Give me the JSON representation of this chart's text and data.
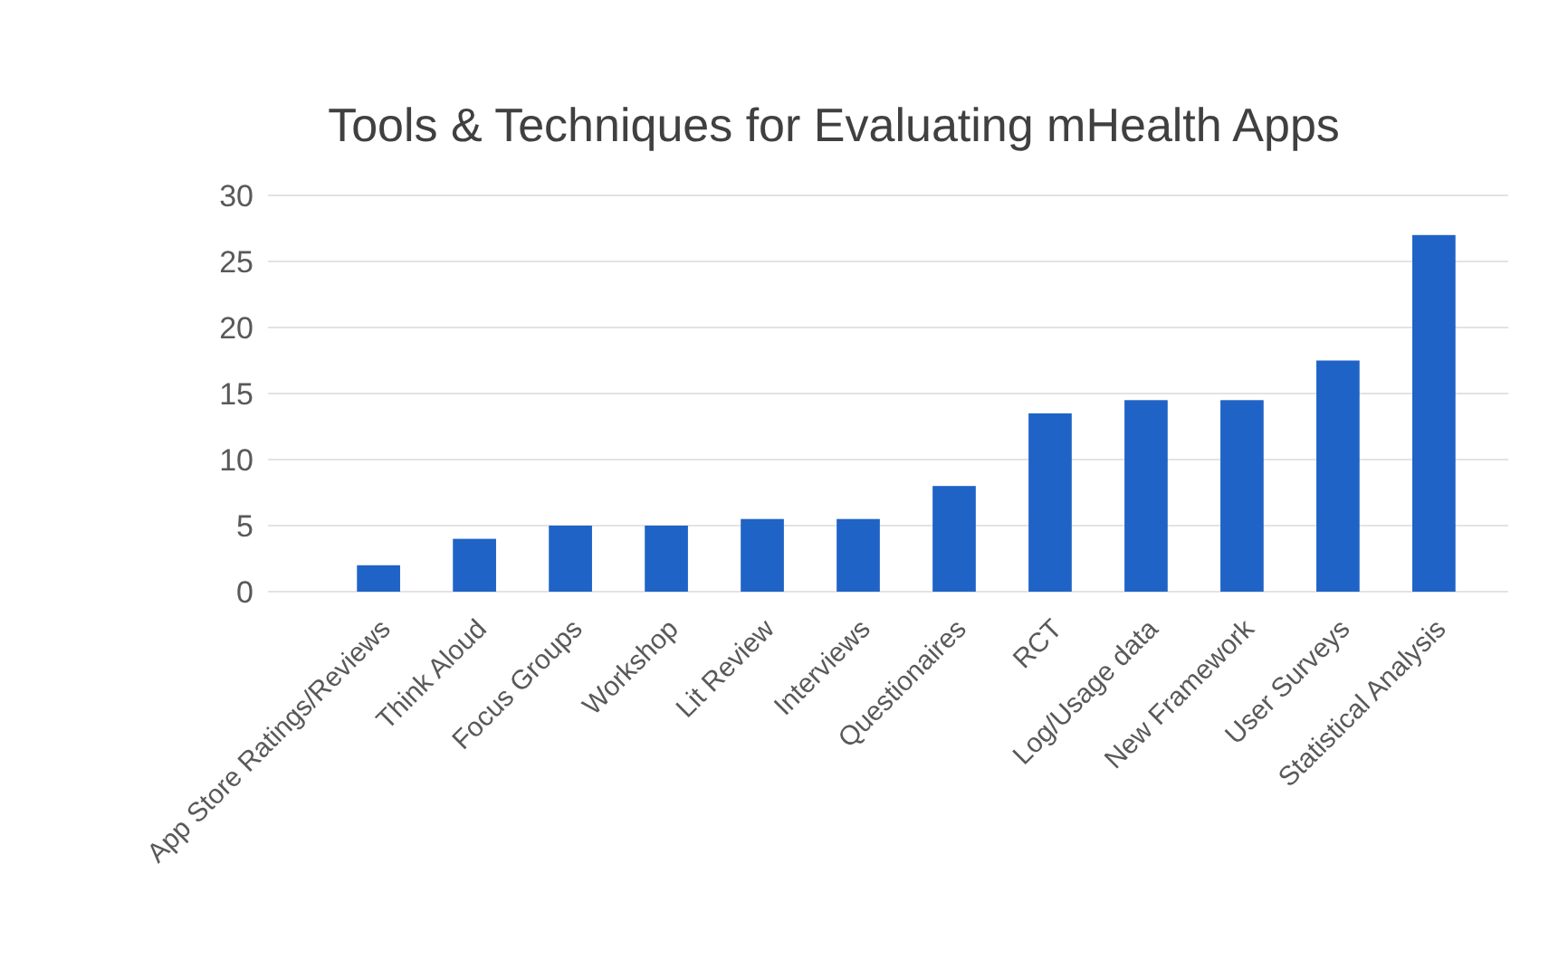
{
  "chart_data": {
    "type": "bar",
    "title": "Tools & Techniques for Evaluating mHealth Apps",
    "categories": [
      "App Store Ratings/Reviews",
      "Think Aloud",
      "Focus Groups",
      "Workshop",
      "Lit Review",
      "Interviews",
      "Questionaires",
      "RCT",
      "Log/Usage data",
      "New Framework",
      "User Surveys",
      "Statistical Analysis"
    ],
    "values": [
      2,
      4,
      5,
      5,
      5.5,
      5.5,
      8,
      13.5,
      14.5,
      14.5,
      17.5,
      27
    ],
    "color": "#1f63c6",
    "ylim": [
      0,
      30
    ],
    "yticks": [
      0,
      5,
      10,
      15,
      20,
      25,
      30
    ],
    "grid": "y"
  }
}
